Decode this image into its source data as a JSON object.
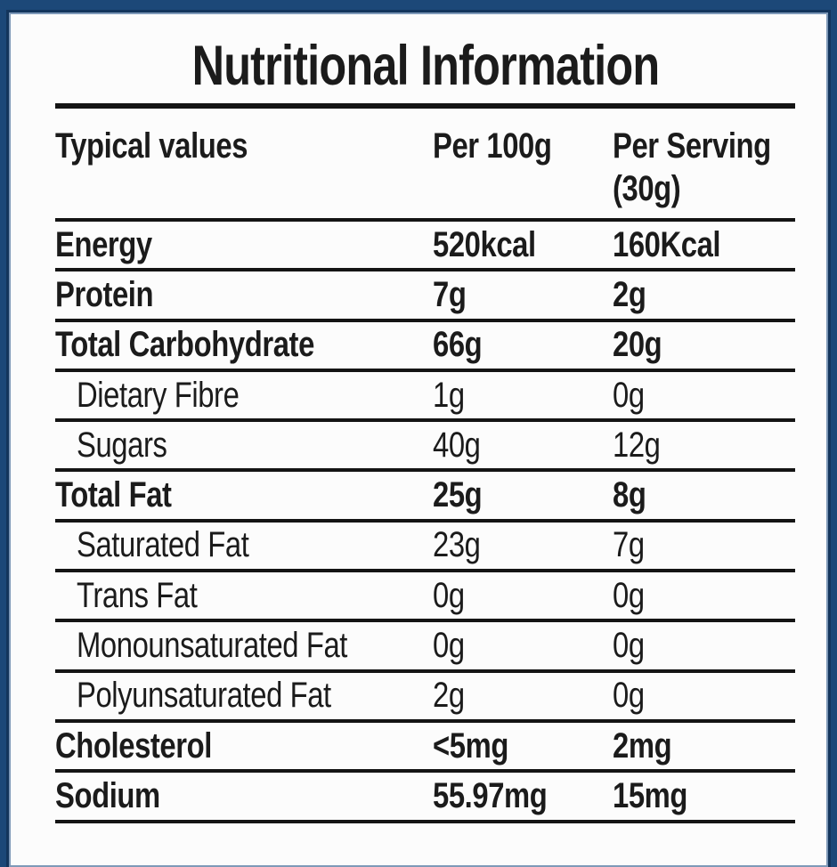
{
  "label": {
    "title": "Nutritional Information",
    "columns": {
      "name": "Typical values",
      "per_100g": "Per 100g",
      "per_serving_line1": "Per Serving",
      "per_serving_line2": "(30g)"
    },
    "rows": [
      {
        "name": "Energy",
        "per_100g": "520kcal",
        "per_serving": "160Kcal",
        "style": "bold"
      },
      {
        "name": "Protein",
        "per_100g": "7g",
        "per_serving": "2g",
        "style": "bold"
      },
      {
        "name": "Total Carbohydrate",
        "per_100g": "66g",
        "per_serving": "20g",
        "style": "bold"
      },
      {
        "name": "Dietary Fibre",
        "per_100g": "1g",
        "per_serving": "0g",
        "style": "sub"
      },
      {
        "name": "Sugars",
        "per_100g": "40g",
        "per_serving": "12g",
        "style": "sub"
      },
      {
        "name": "Total Fat",
        "per_100g": "25g",
        "per_serving": "8g",
        "style": "bold"
      },
      {
        "name": "Saturated Fat",
        "per_100g": "23g",
        "per_serving": "7g",
        "style": "sub"
      },
      {
        "name": "Trans Fat",
        "per_100g": "0g",
        "per_serving": "0g",
        "style": "sub"
      },
      {
        "name": "Monounsaturated Fat",
        "per_100g": "0g",
        "per_serving": "0g",
        "style": "sub"
      },
      {
        "name": "Polyunsaturated Fat",
        "per_100g": "2g",
        "per_serving": "0g",
        "style": "sub"
      },
      {
        "name": "Cholesterol",
        "per_100g": "<5mg",
        "per_serving": "2mg",
        "style": "bold"
      },
      {
        "name": "Sodium",
        "per_100g": "55.97mg",
        "per_serving": "15mg",
        "style": "bold"
      }
    ],
    "colors": {
      "frame": "#1c4878",
      "frame_dark_edge": "#13355c",
      "frame_light_edge": "#7e99b8",
      "background": "#fcfcfc",
      "text": "#1b1b1b",
      "rule": "#141414"
    }
  }
}
